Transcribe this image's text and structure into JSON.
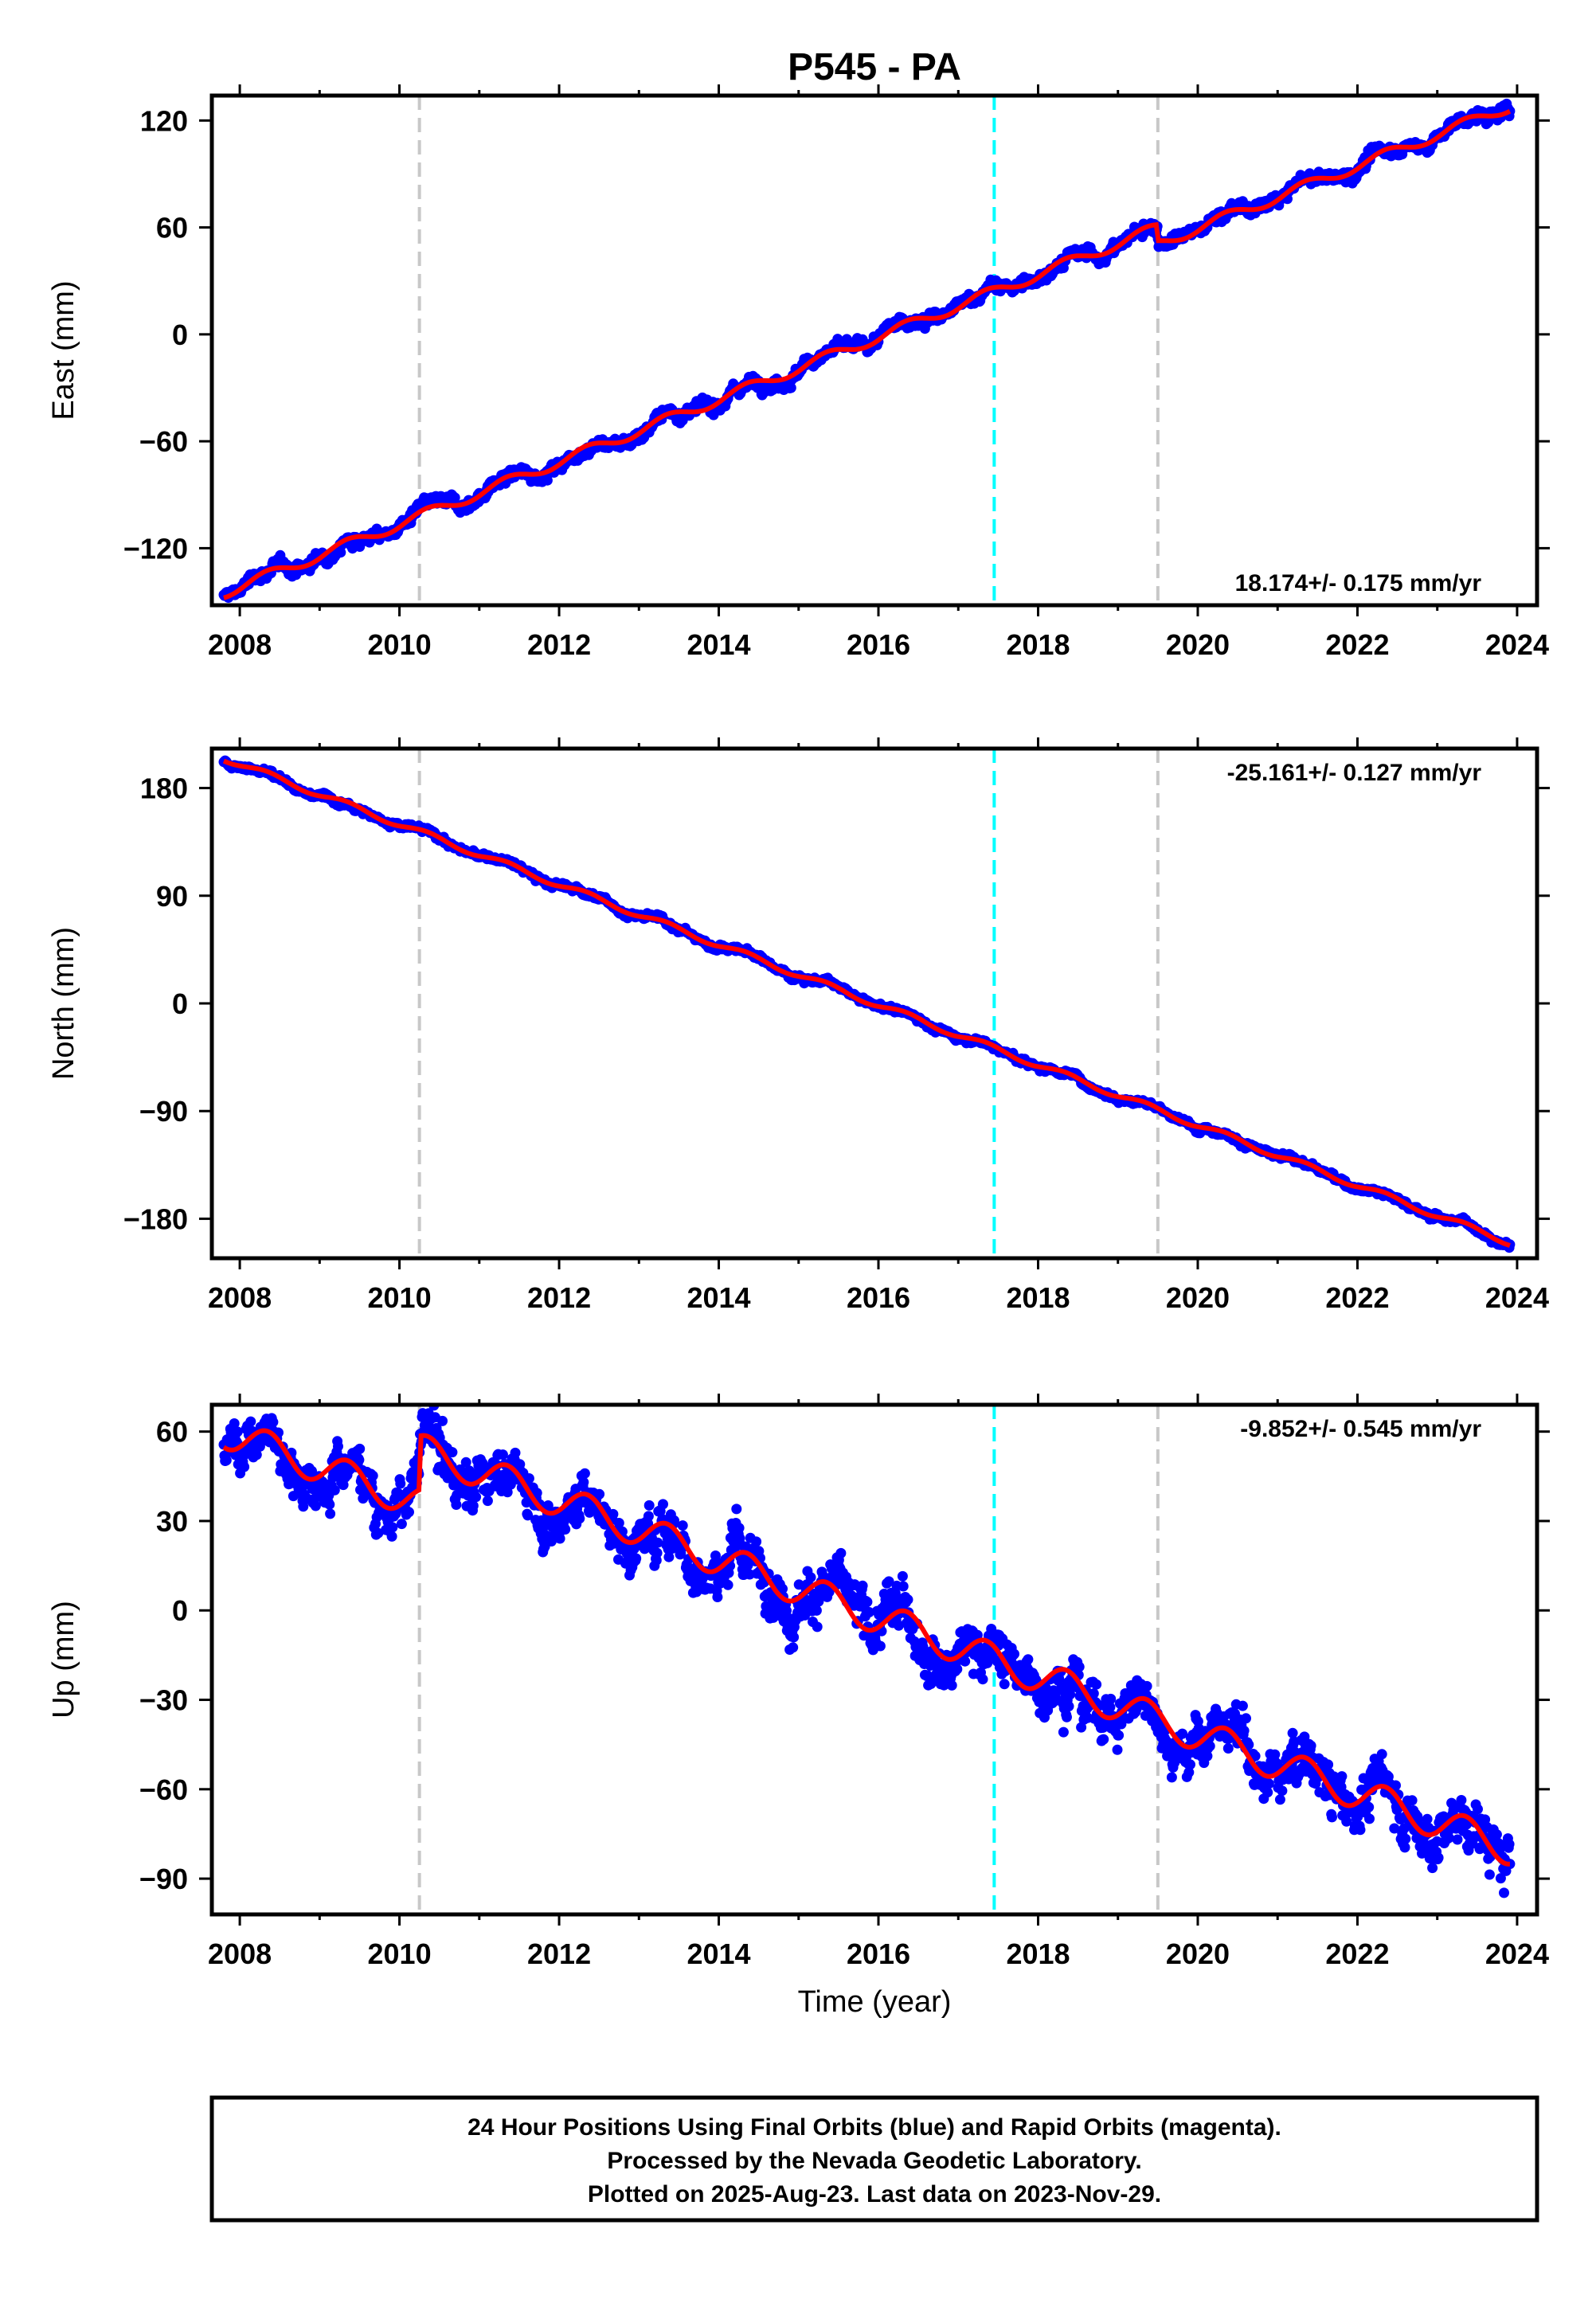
{
  "title": "P545 - PA",
  "colors": {
    "observations": "#0000ff",
    "model": "#ff0000",
    "equipment_change": "#c8c8c8",
    "event": "#00ffff",
    "frame": "#000000"
  },
  "chart_data": [
    {
      "type": "scatter",
      "name": "east",
      "ylabel": "East (mm)",
      "xlabel": "",
      "rate_text": "18.174+/- 0.175 mm/yr",
      "rate_position": "bottom-right",
      "xlim": [
        2007.65,
        2024.25
      ],
      "ylim": [
        -152,
        134
      ],
      "yticks": [
        -120,
        -60,
        0,
        60,
        120
      ],
      "xticks": [
        2008,
        2010,
        2012,
        2014,
        2016,
        2018,
        2020,
        2022,
        2024
      ],
      "vertical_lines": [
        {
          "x": 2010.25,
          "kind": "equipment_change"
        },
        {
          "x": 2017.45,
          "kind": "event"
        },
        {
          "x": 2019.5,
          "kind": "equipment_change"
        }
      ],
      "data_start": 2007.8,
      "data_end": 2023.91,
      "rate_mm_per_yr": 18.174,
      "value_at_start": -145,
      "value_at_end": 128,
      "annual_amplitude": 3.0,
      "scatter": 2.2,
      "offsets": [
        {
          "x": 2019.5,
          "step": -9
        }
      ]
    },
    {
      "type": "scatter",
      "name": "north",
      "ylabel": "North (mm)",
      "xlabel": "",
      "rate_text": "-25.161+/- 0.127 mm/yr",
      "rate_position": "top-right",
      "xlim": [
        2007.65,
        2024.25
      ],
      "ylim": [
        -213,
        213
      ],
      "yticks": [
        -180,
        -90,
        0,
        90,
        180
      ],
      "xticks": [
        2008,
        2010,
        2012,
        2014,
        2016,
        2018,
        2020,
        2022,
        2024
      ],
      "vertical_lines": [
        {
          "x": 2010.25,
          "kind": "equipment_change"
        },
        {
          "x": 2017.45,
          "kind": "event"
        },
        {
          "x": 2019.5,
          "kind": "equipment_change"
        }
      ],
      "data_start": 2007.8,
      "data_end": 2023.91,
      "rate_mm_per_yr": -25.161,
      "value_at_start": 205,
      "value_at_end": -200,
      "annual_amplitude": 2.5,
      "scatter": 1.6,
      "offsets": []
    },
    {
      "type": "scatter",
      "name": "up",
      "ylabel": "Up (mm)",
      "xlabel": "Time (year)",
      "rate_text": "-9.852+/- 0.545 mm/yr",
      "rate_position": "top-right",
      "xlim": [
        2007.65,
        2024.25
      ],
      "ylim": [
        -102,
        69
      ],
      "yticks": [
        -90,
        -60,
        -30,
        0,
        30,
        60
      ],
      "xticks": [
        2008,
        2010,
        2012,
        2014,
        2016,
        2018,
        2020,
        2022,
        2024
      ],
      "vertical_lines": [
        {
          "x": 2010.25,
          "kind": "equipment_change"
        },
        {
          "x": 2017.45,
          "kind": "event"
        },
        {
          "x": 2019.5,
          "kind": "equipment_change"
        }
      ],
      "data_start": 2007.8,
      "data_end": 2023.91,
      "rate_mm_per_yr": -9.852,
      "value_at_start": 60,
      "value_at_end": -80,
      "annual_amplitude": 5.5,
      "scatter": 5.0,
      "offsets": [
        {
          "x": 2010.25,
          "step": 18
        }
      ]
    }
  ],
  "footer": {
    "line1": "24 Hour Positions Using Final Orbits (blue) and Rapid Orbits (magenta).",
    "line2": "Processed by the Nevada Geodetic Laboratory.",
    "line3": "Plotted on 2025-Aug-23. Last data on 2023-Nov-29."
  }
}
